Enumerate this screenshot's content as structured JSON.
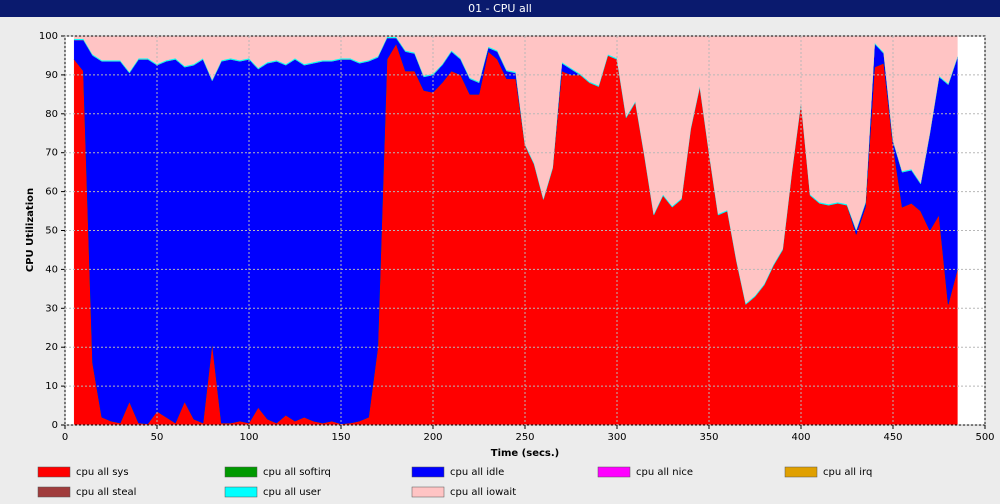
{
  "chart_data": {
    "type": "stacked_area",
    "title": "01 - CPU all",
    "x_label": "Time (secs.)",
    "y_label": "CPU Utilization",
    "xlim": [
      0,
      500
    ],
    "xticks": [
      0,
      50,
      100,
      150,
      200,
      250,
      300,
      350,
      400,
      450,
      500
    ],
    "ylim": [
      0,
      100
    ],
    "yticks": [
      0,
      10,
      20,
      30,
      40,
      50,
      60,
      70,
      80,
      90,
      100
    ],
    "grid": true,
    "legend": "bottom",
    "x": [
      5,
      10,
      15,
      20,
      25,
      30,
      35,
      40,
      45,
      50,
      55,
      60,
      65,
      70,
      75,
      80,
      85,
      90,
      95,
      100,
      105,
      110,
      115,
      120,
      125,
      130,
      135,
      140,
      145,
      150,
      155,
      160,
      165,
      170,
      175,
      180,
      185,
      190,
      195,
      200,
      205,
      210,
      215,
      220,
      225,
      230,
      235,
      240,
      245,
      250,
      255,
      260,
      265,
      270,
      275,
      280,
      285,
      290,
      295,
      300,
      305,
      310,
      315,
      320,
      325,
      330,
      335,
      340,
      345,
      350,
      355,
      360,
      365,
      370,
      375,
      380,
      385,
      390,
      395,
      400,
      405,
      410,
      415,
      420,
      425,
      430,
      435,
      440,
      445,
      450,
      455,
      460,
      465,
      470,
      475,
      480,
      485
    ],
    "series": [
      {
        "name": "cpu all sys",
        "color": "#ff0000",
        "values": [
          94,
          91,
          16,
          2,
          1,
          0.5,
          6,
          0.5,
          0.3,
          3.5,
          2,
          0.5,
          6,
          1.5,
          0.5,
          21,
          0.5,
          0.5,
          1,
          0.5,
          4.5,
          1.5,
          0.5,
          2.5,
          1,
          2,
          1,
          0.5,
          1,
          0.3,
          0.5,
          1,
          2,
          20,
          94,
          98,
          91,
          91,
          86,
          85.5,
          88,
          91,
          90,
          85,
          85,
          96,
          94,
          89,
          89,
          72,
          67,
          58,
          66,
          91,
          90,
          90,
          88,
          87,
          95,
          94,
          79,
          83,
          69,
          54,
          59,
          56,
          58,
          76,
          87,
          70,
          54,
          55,
          42,
          31,
          33,
          36,
          41,
          45,
          65,
          83,
          59,
          57,
          56.5,
          57,
          56.5,
          49,
          56,
          92,
          93,
          72,
          56,
          57,
          55,
          50,
          54,
          31,
          40
        ]
      },
      {
        "name": "cpu all softirq",
        "color": "#009900",
        "values": [
          0,
          0,
          0,
          0,
          0,
          0,
          0,
          0,
          0,
          0,
          0,
          0,
          0,
          0,
          0,
          0,
          0,
          0,
          0,
          0,
          0,
          0,
          0,
          0,
          0,
          0,
          0,
          0,
          0,
          0,
          0,
          0,
          0,
          0,
          0,
          0,
          0,
          0,
          0,
          0,
          0,
          0,
          0,
          0,
          0,
          0,
          0,
          0,
          0,
          0,
          0,
          0,
          0,
          0,
          0,
          0,
          0,
          0,
          0,
          0,
          0,
          0,
          0,
          0,
          0,
          0,
          0,
          0,
          0,
          0,
          0,
          0,
          0,
          0,
          0,
          0,
          0,
          0,
          0,
          0,
          0,
          0,
          0,
          0,
          0,
          0,
          0,
          0,
          0,
          0,
          0,
          0,
          0,
          0,
          0,
          0,
          0
        ]
      },
      {
        "name": "cpu all idle",
        "color": "#0000ff",
        "values": [
          5,
          8,
          79,
          91.5,
          92.5,
          93,
          84.5,
          93.5,
          93.7,
          89,
          91.5,
          93.5,
          86,
          91,
          93.5,
          67.5,
          93,
          93.5,
          92.5,
          93.5,
          87,
          91.5,
          93,
          90,
          93,
          90.5,
          92,
          93,
          92.5,
          93.7,
          93.5,
          92,
          91.5,
          74.5,
          5.5,
          1.5,
          5,
          4.5,
          3.5,
          4.5,
          4.5,
          5,
          4,
          4,
          3,
          1,
          2,
          2,
          1.5,
          0,
          0,
          0,
          0,
          2,
          1.5,
          0,
          0,
          0,
          0,
          0,
          0,
          0,
          0,
          0,
          0,
          0,
          0,
          0,
          0,
          0,
          0,
          0,
          0,
          0,
          0,
          0,
          0,
          0,
          0,
          0,
          0,
          0,
          0,
          0,
          0,
          1,
          1,
          6,
          2.5,
          1,
          9,
          8.5,
          7,
          25,
          35.5,
          56.5,
          54.5
        ]
      },
      {
        "name": "cpu all nice",
        "color": "#ff00ff",
        "values": [
          0,
          0,
          0,
          0,
          0,
          0,
          0,
          0,
          0,
          0,
          0,
          0,
          0,
          0,
          0,
          0,
          0,
          0,
          0,
          0,
          0,
          0,
          0,
          0,
          0,
          0,
          0,
          0,
          0,
          0,
          0,
          0,
          0,
          0,
          0,
          0,
          0,
          0,
          0,
          0,
          0,
          0,
          0,
          0,
          0,
          0,
          0,
          0,
          0,
          0,
          0,
          0,
          0,
          0,
          0,
          0,
          0,
          0,
          0,
          0,
          0,
          0,
          0,
          0,
          0,
          0,
          0,
          0,
          0,
          0,
          0,
          0,
          0,
          0,
          0,
          0,
          0,
          0,
          0,
          0,
          0,
          0,
          0,
          0,
          0,
          0,
          0,
          0,
          0,
          0,
          0,
          0,
          0,
          0,
          0,
          0,
          0
        ]
      },
      {
        "name": "cpu all irq",
        "color": "#e0a000",
        "values": [
          0,
          0,
          0,
          0,
          0,
          0,
          0,
          0,
          0,
          0,
          0,
          0,
          0,
          0,
          0,
          0,
          0,
          0,
          0,
          0,
          0,
          0,
          0,
          0,
          0,
          0,
          0,
          0,
          0,
          0,
          0,
          0,
          0,
          0,
          0,
          0,
          0,
          0,
          0,
          0,
          0,
          0,
          0,
          0,
          0,
          0,
          0,
          0,
          0,
          0,
          0,
          0,
          0,
          0,
          0,
          0,
          0,
          0,
          0,
          0,
          0,
          0,
          0,
          0,
          0,
          0,
          0,
          0,
          0,
          0,
          0,
          0,
          0,
          0,
          0,
          0,
          0,
          0,
          0,
          0,
          0,
          0,
          0,
          0,
          0,
          0,
          0,
          0,
          0,
          0,
          0,
          0,
          0,
          0,
          0,
          0,
          0
        ]
      },
      {
        "name": "cpu all steal",
        "color": "#a03c3c",
        "values": [
          0,
          0,
          0,
          0,
          0,
          0,
          0,
          0,
          0,
          0,
          0,
          0,
          0,
          0,
          0,
          0,
          0,
          0,
          0,
          0,
          0,
          0,
          0,
          0,
          0,
          0,
          0,
          0,
          0,
          0,
          0,
          0,
          0,
          0,
          0,
          0,
          0,
          0,
          0,
          0,
          0,
          0,
          0,
          0,
          0,
          0,
          0,
          0,
          0,
          0,
          0,
          0,
          0,
          0,
          0,
          0,
          0,
          0,
          0,
          0,
          0,
          0,
          0,
          0,
          0,
          0,
          0,
          0,
          0,
          0,
          0,
          0,
          0,
          0,
          0,
          0,
          0,
          0,
          0,
          0,
          0,
          0,
          0,
          0,
          0,
          0,
          0,
          0,
          0,
          0,
          0,
          0,
          0,
          0,
          0,
          0,
          0
        ]
      },
      {
        "name": "cpu all user",
        "color": "#00ffff",
        "values": [
          0.3,
          0.3,
          0.3,
          0.3,
          0.3,
          0.3,
          0.3,
          0.3,
          0.3,
          0.3,
          0.3,
          0.3,
          0.3,
          0.3,
          0.3,
          0.3,
          0.3,
          0.3,
          0.3,
          0.3,
          0.3,
          0.3,
          0.3,
          0.3,
          0.3,
          0.3,
          0.3,
          0.3,
          0.3,
          0.3,
          0.3,
          0.3,
          0.3,
          0.3,
          0.3,
          0.3,
          0.3,
          0.3,
          0.3,
          0.3,
          0.3,
          0.3,
          0.3,
          0.3,
          0.3,
          0.3,
          0.3,
          0.3,
          0.3,
          0.3,
          0.3,
          0.3,
          0.3,
          0.3,
          0.3,
          0.3,
          0.3,
          0.3,
          0.3,
          0.3,
          0.3,
          0.3,
          0.3,
          0.3,
          0.3,
          0.3,
          0.3,
          0.3,
          0.3,
          0.3,
          0.3,
          0.3,
          0.3,
          0.3,
          0.3,
          0.3,
          0.3,
          0.3,
          0.3,
          0.3,
          0.3,
          0.3,
          0.3,
          0.3,
          0.3,
          0.3,
          0.3,
          0.3,
          0.3,
          0.3,
          0.3,
          0.3,
          0.3,
          0.3,
          0.3,
          0.3,
          0.3
        ]
      },
      {
        "name": "cpu all iowait",
        "color": "#ffc4c4",
        "values": [
          0.7,
          0.7,
          4.7,
          6.2,
          6.2,
          6.2,
          9.2,
          5.7,
          5.7,
          7.2,
          6.2,
          5.7,
          7.7,
          7.2,
          5.7,
          11.2,
          6.2,
          5.7,
          6.2,
          5.7,
          8.2,
          6.7,
          6.2,
          7.2,
          5.7,
          7.2,
          6.7,
          6.2,
          6.2,
          5.7,
          5.7,
          6.7,
          6.2,
          5.2,
          0.2,
          0.2,
          3.7,
          4.2,
          10.2,
          9.7,
          7.2,
          3.7,
          5.7,
          10.7,
          11.7,
          2.7,
          3.7,
          8.7,
          9.2,
          27.7,
          32.7,
          41.7,
          33.7,
          6.7,
          8.2,
          9.7,
          11.7,
          12.7,
          4.7,
          5.7,
          20.7,
          16.7,
          30.7,
          45.7,
          40.7,
          43.7,
          41.7,
          23.7,
          12.7,
          29.7,
          45.7,
          44.7,
          57.7,
          68.7,
          66.7,
          63.7,
          58.7,
          54.7,
          34.7,
          16.7,
          40.7,
          42.7,
          43.2,
          42.7,
          43.2,
          49.7,
          42.7,
          1.7,
          4.2,
          26.7,
          34.7,
          34.2,
          37.7,
          24.7,
          10.2,
          12.2,
          5.2
        ]
      }
    ]
  }
}
